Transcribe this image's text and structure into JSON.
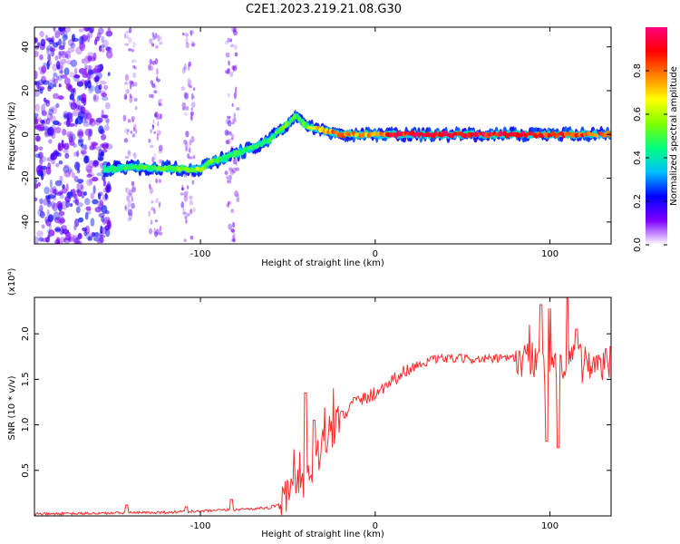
{
  "figure_title": "C2E1.2023.219.21.08.G30",
  "colormap": [
    "#ffffff",
    "#7f00ff",
    "#0000ff",
    "#00bfff",
    "#00ff80",
    "#80ff00",
    "#ffff00",
    "#ff8000",
    "#ff0000",
    "#ff0080"
  ],
  "chart_data": [
    {
      "type": "heatmap",
      "title": "",
      "xlabel": "Height of straight line (km)",
      "ylabel": "Frequency (Hz)",
      "xlim": [
        -195,
        135
      ],
      "ylim": [
        -50,
        49
      ],
      "xticks": [
        -100,
        0,
        100
      ],
      "yticks": [
        -40,
        -20,
        0,
        20,
        40
      ],
      "colorbar": {
        "label": "Normalized spectral amplitude",
        "range": [
          0,
          1
        ],
        "ticks": [
          "0.0",
          "0.2",
          "0.4",
          "0.6",
          "0.8"
        ],
        "tick_values": [
          0,
          0.2,
          0.4,
          0.6,
          0.8
        ]
      },
      "ridge": {
        "description_points_x": [
          -155,
          -140,
          -120,
          -100,
          -95,
          -80,
          -70,
          -60,
          -50,
          -45,
          -40,
          -35,
          -30,
          -20,
          -10,
          0,
          10,
          40,
          80,
          100,
          135
        ],
        "description_points_y": [
          -16,
          -15,
          -15.5,
          -16,
          -13,
          -9,
          -6,
          -2,
          5,
          9,
          4,
          3,
          2,
          0,
          0,
          0,
          0,
          0,
          0,
          0,
          0
        ],
        "amplitude": [
          0.45,
          0.5,
          0.55,
          0.6,
          0.55,
          0.5,
          0.5,
          0.5,
          0.55,
          0.5,
          0.55,
          0.7,
          0.8,
          0.85,
          0.8,
          0.75,
          0.95,
          0.97,
          0.95,
          0.9,
          0.85
        ]
      },
      "noise_region_x": [
        -195,
        -160
      ],
      "noise_stripes_x": [
        -140,
        -126,
        -107,
        -82
      ]
    },
    {
      "type": "line",
      "title": "",
      "xlabel": "Height of straight line (km)",
      "ylabel": "SNR (10 * v/v)",
      "y_multiplier": "(x10⁴)",
      "xlim": [
        -195,
        135
      ],
      "ylim": [
        0,
        2.4
      ],
      "xticks": [
        -100,
        0,
        100
      ],
      "yticks": [
        0.5,
        1.0,
        1.5,
        2.0
      ],
      "ytick_labels": [
        "0.5",
        "1.0",
        "1.5",
        "2.0"
      ],
      "color": "#ff2a2a",
      "envelope": {
        "x": [
          -195,
          -150,
          -120,
          -100,
          -80,
          -60,
          -50,
          -45,
          -40,
          -35,
          -30,
          -25,
          -20,
          -10,
          0,
          10,
          20,
          30,
          40,
          60,
          80,
          90,
          100,
          110,
          120,
          135
        ],
        "y": [
          0.02,
          0.03,
          0.04,
          0.05,
          0.07,
          0.09,
          0.18,
          0.3,
          0.45,
          0.6,
          0.75,
          0.95,
          1.1,
          1.25,
          1.35,
          1.5,
          1.62,
          1.7,
          1.73,
          1.72,
          1.73,
          1.72,
          1.7,
          1.7,
          1.68,
          1.68
        ]
      },
      "spikes": [
        {
          "x": -142,
          "y": 0.12
        },
        {
          "x": -108,
          "y": 0.1
        },
        {
          "x": -82,
          "y": 0.18
        },
        {
          "x": -40,
          "y": 1.35
        },
        {
          "x": -35,
          "y": 1.05
        },
        {
          "x": -19,
          "y": 1.15
        },
        {
          "x": -12,
          "y": 1.3
        },
        {
          "x": 88,
          "y": 2.1
        },
        {
          "x": 95,
          "y": 2.32
        },
        {
          "x": 98,
          "y": 0.82
        },
        {
          "x": 100,
          "y": 2.28
        },
        {
          "x": 105,
          "y": 0.75
        },
        {
          "x": 110,
          "y": 2.4
        },
        {
          "x": 115,
          "y": 2.05
        }
      ]
    }
  ]
}
